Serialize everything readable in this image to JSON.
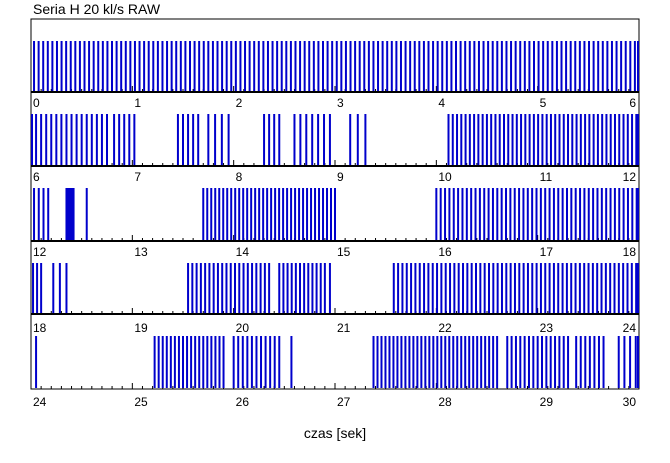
{
  "chart_data": {
    "type": "bar",
    "title": "Seria H 20 kl/s RAW",
    "xlabel": "czas [sek]",
    "ylabel": "",
    "bar_color": "#0000cc",
    "xlim": [
      0,
      30
    ],
    "rows": [
      {
        "range": [
          0,
          6
        ],
        "tick_labels": [
          "0",
          "1",
          "2",
          "3",
          "4",
          "5",
          "6"
        ],
        "groups": [
          {
            "start": 0.03,
            "end": 6.05,
            "count": 134
          }
        ]
      },
      {
        "range": [
          6,
          12
        ],
        "tick_labels": [
          "6",
          "7",
          "8",
          "9",
          "10",
          "11",
          "12"
        ],
        "groups": [
          {
            "start": 6.0,
            "end": 6.75,
            "count": 16
          },
          {
            "start": 6.82,
            "end": 7.02,
            "count": 5
          },
          {
            "start": 7.45,
            "end": 7.65,
            "count": 5
          },
          {
            "start": 7.75,
            "end": 7.95,
            "count": 4
          },
          {
            "start": 8.3,
            "end": 8.45,
            "count": 4
          },
          {
            "start": 8.6,
            "end": 8.95,
            "count": 7
          },
          {
            "start": 9.15,
            "end": 9.3,
            "count": 3
          },
          {
            "start": 10.12,
            "end": 12.1,
            "count": 48
          }
        ]
      },
      {
        "range": [
          12,
          18
        ],
        "tick_labels": [
          "12",
          "13",
          "14",
          "15",
          "16",
          "17",
          "18"
        ],
        "groups": [
          {
            "start": 12.03,
            "end": 12.17,
            "count": 4
          },
          {
            "start": 12.35,
            "end": 12.42,
            "count": 7
          },
          {
            "start": 12.55,
            "end": 12.62,
            "count": 1
          },
          {
            "start": 13.7,
            "end": 15.0,
            "count": 34
          },
          {
            "start": 16.0,
            "end": 18.02,
            "count": 48
          }
        ]
      },
      {
        "range": [
          18,
          24
        ],
        "tick_labels": [
          "18",
          "19",
          "20",
          "21",
          "22",
          "23",
          "24"
        ],
        "groups": [
          {
            "start": 18.02,
            "end": 18.1,
            "count": 3
          },
          {
            "start": 18.22,
            "end": 18.35,
            "count": 3
          },
          {
            "start": 19.55,
            "end": 20.35,
            "count": 20
          },
          {
            "start": 20.45,
            "end": 20.9,
            "count": 12
          },
          {
            "start": 20.95,
            "end": 21.0,
            "count": 1
          },
          {
            "start": 21.58,
            "end": 24.1,
            "count": 60
          }
        ]
      },
      {
        "range": [
          24,
          30
        ],
        "tick_labels": [
          "24",
          "25",
          "26",
          "27",
          "28",
          "29",
          "30"
        ],
        "groups": [
          {
            "start": 24.05,
            "end": 24.07,
            "count": 1
          },
          {
            "start": 25.22,
            "end": 25.9,
            "count": 18
          },
          {
            "start": 26.0,
            "end": 26.45,
            "count": 11
          },
          {
            "start": 26.57,
            "end": 26.6,
            "count": 1
          },
          {
            "start": 27.38,
            "end": 28.6,
            "count": 32
          },
          {
            "start": 28.7,
            "end": 29.3,
            "count": 15
          },
          {
            "start": 29.38,
            "end": 29.65,
            "count": 7
          },
          {
            "start": 29.8,
            "end": 30.08,
            "count": 6
          }
        ]
      }
    ]
  }
}
